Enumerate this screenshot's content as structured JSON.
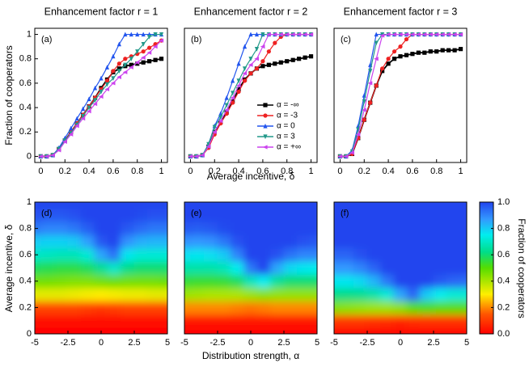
{
  "x_label_top": "Average incentive, δ",
  "y_label_top": "Fraction of cooperators",
  "x_label_bottom": "Distribution strength, α",
  "y_label_bottom": "Average incentive, δ",
  "colorbar": {
    "label": "Fraction of cooperators",
    "lim": [
      0,
      1
    ],
    "ticks": [
      {
        "value": 0,
        "label": "0.0"
      },
      {
        "value": 0.2,
        "label": "0.2"
      },
      {
        "value": 0.4,
        "label": "0.4"
      },
      {
        "value": 0.6,
        "label": "0.6"
      },
      {
        "value": 0.8,
        "label": "0.8"
      },
      {
        "value": 1,
        "label": "1.0"
      }
    ],
    "colorscale": [
      [
        0,
        "#ff0000"
      ],
      [
        0.15,
        "#ff5500"
      ],
      [
        0.3,
        "#ffee00"
      ],
      [
        0.5,
        "#55dd00"
      ],
      [
        0.62,
        "#00dd88"
      ],
      [
        0.75,
        "#00eeee"
      ],
      [
        0.87,
        "#3399ff"
      ],
      [
        1,
        "#2244ee"
      ]
    ]
  },
  "chart_data": [
    {
      "type": "line",
      "title": "Enhancement factor r = 1",
      "panel_label": "(a)",
      "xlim": [
        -0.05,
        1.05
      ],
      "xticks": [
        0,
        0.2,
        0.4,
        0.6,
        0.8,
        1
      ],
      "ylim": [
        -0.05,
        1.05
      ],
      "yticks": [
        0,
        0.2,
        0.4,
        0.6,
        0.8,
        1
      ],
      "x": [
        0,
        0.05,
        0.1,
        0.15,
        0.2,
        0.25,
        0.3,
        0.35,
        0.4,
        0.45,
        0.5,
        0.55,
        0.6,
        0.65,
        0.7,
        0.75,
        0.8,
        0.85,
        0.9,
        0.95,
        1
      ],
      "series": [
        {
          "name": "α = -∞",
          "color": "#000000",
          "marker": "square",
          "values": [
            0,
            0,
            0.01,
            0.06,
            0.13,
            0.2,
            0.27,
            0.34,
            0.41,
            0.48,
            0.56,
            0.63,
            0.69,
            0.72,
            0.74,
            0.75,
            0.76,
            0.77,
            0.78,
            0.79,
            0.8
          ]
        },
        {
          "name": "α = -3",
          "color": "#ee2222",
          "marker": "circle",
          "values": [
            0,
            0,
            0.01,
            0.06,
            0.13,
            0.2,
            0.27,
            0.34,
            0.41,
            0.48,
            0.55,
            0.62,
            0.7,
            0.76,
            0.8,
            0.82,
            0.84,
            0.86,
            0.89,
            0.92,
            0.95
          ]
        },
        {
          "name": "α = 0",
          "color": "#2255ee",
          "marker": "up",
          "values": [
            0,
            0,
            0.01,
            0.07,
            0.15,
            0.23,
            0.31,
            0.39,
            0.47,
            0.56,
            0.64,
            0.73,
            0.82,
            0.92,
            1,
            1,
            1,
            1,
            1,
            1,
            1
          ]
        },
        {
          "name": "α = 3",
          "color": "#22998a",
          "marker": "down",
          "values": [
            0,
            0,
            0.01,
            0.06,
            0.13,
            0.19,
            0.26,
            0.33,
            0.4,
            0.46,
            0.53,
            0.59,
            0.64,
            0.7,
            0.75,
            0.8,
            0.86,
            0.92,
            0.98,
            1,
            1
          ]
        },
        {
          "name": "α = +∞",
          "color": "#cc44ee",
          "marker": "left",
          "values": [
            0,
            0,
            0.01,
            0.05,
            0.12,
            0.18,
            0.25,
            0.31,
            0.37,
            0.43,
            0.49,
            0.55,
            0.6,
            0.65,
            0.69,
            0.73,
            0.77,
            0.81,
            0.85,
            0.9,
            0.95
          ]
        }
      ]
    },
    {
      "type": "line",
      "title": "Enhancement factor r = 2",
      "panel_label": "(b)",
      "legend": true,
      "xlim": [
        -0.05,
        1.05
      ],
      "xticks": [
        0,
        0.2,
        0.4,
        0.6,
        0.8,
        1
      ],
      "ylim": [
        -0.05,
        1.05
      ],
      "x": [
        0,
        0.05,
        0.1,
        0.15,
        0.2,
        0.25,
        0.3,
        0.35,
        0.4,
        0.45,
        0.5,
        0.55,
        0.6,
        0.65,
        0.7,
        0.75,
        0.8,
        0.85,
        0.9,
        0.95,
        1
      ],
      "series": [
        {
          "name": "α = -∞",
          "color": "#000000",
          "marker": "square",
          "values": [
            0,
            0,
            0.01,
            0.08,
            0.2,
            0.28,
            0.36,
            0.45,
            0.55,
            0.63,
            0.68,
            0.72,
            0.74,
            0.75,
            0.76,
            0.77,
            0.78,
            0.79,
            0.8,
            0.81,
            0.82
          ]
        },
        {
          "name": "α = -3",
          "color": "#ee2222",
          "marker": "circle",
          "values": [
            0,
            0,
            0.01,
            0.07,
            0.18,
            0.27,
            0.35,
            0.44,
            0.53,
            0.62,
            0.68,
            0.72,
            0.78,
            0.86,
            0.93,
            0.98,
            1,
            1,
            1,
            1,
            1
          ]
        },
        {
          "name": "α = 0",
          "color": "#2255ee",
          "marker": "up",
          "values": [
            0,
            0,
            0.01,
            0.1,
            0.25,
            0.35,
            0.48,
            0.62,
            0.76,
            0.9,
            1,
            1,
            1,
            1,
            1,
            1,
            1,
            1,
            1,
            1,
            1
          ]
        },
        {
          "name": "α = 3",
          "color": "#22998a",
          "marker": "down",
          "values": [
            0,
            0,
            0.01,
            0.1,
            0.24,
            0.32,
            0.42,
            0.52,
            0.62,
            0.72,
            0.8,
            0.88,
            1,
            1,
            1,
            1,
            1,
            1,
            1,
            1,
            1
          ]
        },
        {
          "name": "α = +∞",
          "color": "#cc44ee",
          "marker": "left",
          "values": [
            0,
            0,
            0.01,
            0.08,
            0.2,
            0.29,
            0.38,
            0.48,
            0.58,
            0.68,
            0.75,
            0.8,
            0.9,
            1,
            1,
            1,
            1,
            1,
            1,
            1,
            1
          ]
        }
      ]
    },
    {
      "type": "line",
      "title": "Enhancement factor r = 3",
      "panel_label": "(c)",
      "xlim": [
        -0.05,
        1.05
      ],
      "xticks": [
        0,
        0.2,
        0.4,
        0.6,
        0.8,
        1
      ],
      "ylim": [
        -0.05,
        1.05
      ],
      "x": [
        0,
        0.05,
        0.1,
        0.15,
        0.2,
        0.25,
        0.3,
        0.35,
        0.4,
        0.45,
        0.5,
        0.55,
        0.6,
        0.65,
        0.7,
        0.75,
        0.8,
        0.85,
        0.9,
        0.95,
        1
      ],
      "series": [
        {
          "name": "α = -∞",
          "color": "#000000",
          "marker": "square",
          "values": [
            0,
            0,
            0.02,
            0.15,
            0.3,
            0.44,
            0.58,
            0.7,
            0.76,
            0.8,
            0.82,
            0.83,
            0.84,
            0.85,
            0.85,
            0.86,
            0.86,
            0.87,
            0.87,
            0.87,
            0.88
          ]
        },
        {
          "name": "α = -3",
          "color": "#ee2222",
          "marker": "circle",
          "values": [
            0,
            0,
            0.02,
            0.15,
            0.3,
            0.44,
            0.58,
            0.72,
            0.8,
            0.86,
            0.9,
            0.96,
            1,
            1,
            1,
            1,
            1,
            1,
            1,
            1,
            1
          ]
        },
        {
          "name": "α = 0",
          "color": "#2255ee",
          "marker": "up",
          "values": [
            0,
            0,
            0.05,
            0.25,
            0.5,
            0.75,
            1,
            1,
            1,
            1,
            1,
            1,
            1,
            1,
            1,
            1,
            1,
            1,
            1,
            1,
            1
          ]
        },
        {
          "name": "α = 3",
          "color": "#22998a",
          "marker": "down",
          "values": [
            0,
            0,
            0.04,
            0.22,
            0.45,
            0.7,
            0.93,
            1,
            1,
            1,
            1,
            1,
            1,
            1,
            1,
            1,
            1,
            1,
            1,
            1,
            1
          ]
        },
        {
          "name": "α = +∞",
          "color": "#cc44ee",
          "marker": "left",
          "values": [
            0,
            0,
            0.03,
            0.18,
            0.38,
            0.6,
            0.8,
            0.99,
            1,
            1,
            1,
            1,
            1,
            1,
            1,
            1,
            1,
            1,
            1,
            1,
            1
          ]
        }
      ]
    },
    {
      "type": "heatmap",
      "panel_label": "(d)",
      "xlim": [
        -5,
        5
      ],
      "xticks": [
        -5,
        -2.5,
        0,
        2.5,
        5
      ],
      "ylim": [
        0,
        1
      ],
      "yticks": [
        0,
        0.2,
        0.4,
        0.6,
        0.8,
        1
      ],
      "x": [
        -5,
        -4,
        -3,
        -2,
        -1,
        0,
        1,
        2,
        3,
        4,
        5
      ],
      "y": [
        0,
        0.1,
        0.2,
        0.3,
        0.4,
        0.5,
        0.6,
        0.7,
        0.8,
        0.9,
        1
      ],
      "z": [
        [
          0,
          0,
          0,
          0,
          0,
          0,
          0,
          0,
          0,
          0,
          0
        ],
        [
          0.03,
          0.03,
          0.03,
          0.03,
          0.03,
          0.03,
          0.03,
          0.03,
          0.03,
          0.03,
          0.03
        ],
        [
          0.12,
          0.12,
          0.12,
          0.12,
          0.11,
          0.1,
          0.11,
          0.12,
          0.12,
          0.12,
          0.12
        ],
        [
          0.33,
          0.33,
          0.33,
          0.32,
          0.31,
          0.3,
          0.31,
          0.32,
          0.32,
          0.33,
          0.33
        ],
        [
          0.47,
          0.47,
          0.46,
          0.45,
          0.45,
          0.47,
          0.48,
          0.47,
          0.47,
          0.47,
          0.48
        ],
        [
          0.58,
          0.57,
          0.56,
          0.56,
          0.58,
          0.63,
          0.7,
          0.62,
          0.6,
          0.6,
          0.6
        ],
        [
          0.7,
          0.69,
          0.68,
          0.68,
          0.72,
          0.85,
          0.93,
          0.76,
          0.72,
          0.72,
          0.72
        ],
        [
          0.8,
          0.79,
          0.79,
          0.8,
          0.86,
          0.97,
          1,
          0.88,
          0.84,
          0.83,
          0.83
        ],
        [
          0.92,
          0.9,
          0.9,
          0.92,
          0.96,
          1,
          1,
          0.97,
          0.94,
          0.92,
          0.92
        ],
        [
          0.98,
          0.97,
          0.97,
          0.98,
          1,
          1,
          1,
          1,
          0.99,
          0.98,
          0.98
        ],
        [
          1,
          1,
          1,
          1,
          1,
          1,
          1,
          1,
          1,
          1,
          1
        ]
      ]
    },
    {
      "type": "heatmap",
      "panel_label": "(e)",
      "xlim": [
        -5,
        5
      ],
      "xticks": [
        -5,
        -2.5,
        0,
        2.5,
        5
      ],
      "ylim": [
        0,
        1
      ],
      "x": [
        -5,
        -4,
        -3,
        -2,
        -1,
        0,
        1,
        2,
        3,
        4,
        5
      ],
      "y": [
        0,
        0.1,
        0.2,
        0.3,
        0.4,
        0.5,
        0.6,
        0.7,
        0.8,
        0.9,
        1
      ],
      "z": [
        [
          0,
          0,
          0,
          0,
          0,
          0,
          0,
          0,
          0,
          0,
          0
        ],
        [
          0.04,
          0.04,
          0.04,
          0.04,
          0.04,
          0.04,
          0.04,
          0.04,
          0.04,
          0.04,
          0.04
        ],
        [
          0.2,
          0.2,
          0.2,
          0.2,
          0.19,
          0.18,
          0.19,
          0.2,
          0.2,
          0.2,
          0.2
        ],
        [
          0.42,
          0.41,
          0.4,
          0.4,
          0.4,
          0.42,
          0.44,
          0.43,
          0.43,
          0.43,
          0.43
        ],
        [
          0.55,
          0.54,
          0.54,
          0.55,
          0.58,
          0.68,
          0.75,
          0.64,
          0.6,
          0.6,
          0.6
        ],
        [
          0.66,
          0.66,
          0.66,
          0.68,
          0.75,
          0.92,
          1,
          0.85,
          0.78,
          0.76,
          0.75
        ],
        [
          0.77,
          0.76,
          0.77,
          0.8,
          0.9,
          1,
          1,
          0.98,
          0.93,
          0.9,
          0.9
        ],
        [
          0.88,
          0.87,
          0.88,
          0.92,
          0.98,
          1,
          1,
          1,
          1,
          0.98,
          0.97
        ],
        [
          0.97,
          0.96,
          0.97,
          0.99,
          1,
          1,
          1,
          1,
          1,
          1,
          1
        ],
        [
          1,
          1,
          1,
          1,
          1,
          1,
          1,
          1,
          1,
          1,
          1
        ],
        [
          1,
          1,
          1,
          1,
          1,
          1,
          1,
          1,
          1,
          1,
          1
        ]
      ]
    },
    {
      "type": "heatmap",
      "panel_label": "(f)",
      "xlim": [
        -5,
        5
      ],
      "xticks": [
        -5,
        -2.5,
        0,
        2.5,
        5
      ],
      "ylim": [
        0,
        1
      ],
      "x": [
        -5,
        -4,
        -3,
        -2,
        -1,
        0,
        1,
        2,
        3,
        4,
        5
      ],
      "y": [
        0,
        0.1,
        0.2,
        0.3,
        0.4,
        0.5,
        0.6,
        0.7,
        0.8,
        0.9,
        1
      ],
      "z": [
        [
          0,
          0,
          0,
          0,
          0,
          0,
          0,
          0,
          0,
          0,
          0
        ],
        [
          0.1,
          0.1,
          0.1,
          0.09,
          0.08,
          0.07,
          0.08,
          0.09,
          0.09,
          0.09,
          0.09
        ],
        [
          0.45,
          0.44,
          0.43,
          0.42,
          0.42,
          0.44,
          0.5,
          0.52,
          0.5,
          0.5,
          0.5
        ],
        [
          0.62,
          0.62,
          0.63,
          0.66,
          0.72,
          0.85,
          0.95,
          0.8,
          0.75,
          0.72,
          0.72
        ],
        [
          0.76,
          0.76,
          0.78,
          0.83,
          0.92,
          1,
          1,
          1,
          0.97,
          0.95,
          0.94
        ],
        [
          0.87,
          0.87,
          0.9,
          0.95,
          1,
          1,
          1,
          1,
          1,
          1,
          1
        ],
        [
          0.95,
          0.95,
          0.98,
          1,
          1,
          1,
          1,
          1,
          1,
          1,
          1
        ],
        [
          1,
          1,
          1,
          1,
          1,
          1,
          1,
          1,
          1,
          1,
          1
        ],
        [
          1,
          1,
          1,
          1,
          1,
          1,
          1,
          1,
          1,
          1,
          1
        ],
        [
          1,
          1,
          1,
          1,
          1,
          1,
          1,
          1,
          1,
          1,
          1
        ],
        [
          1,
          1,
          1,
          1,
          1,
          1,
          1,
          1,
          1,
          1,
          1
        ]
      ]
    }
  ]
}
